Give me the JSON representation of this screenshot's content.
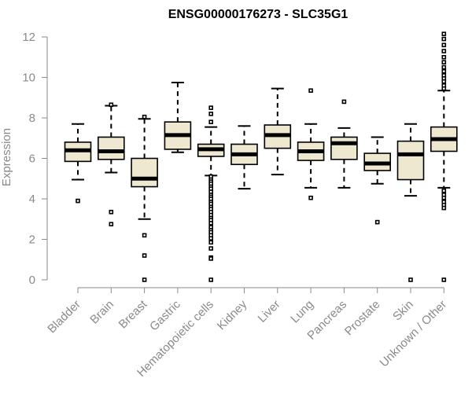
{
  "chart_data": {
    "type": "box",
    "title": "ENSG00000176273 - SLC35G1",
    "xlabel": "",
    "ylabel": "Expression",
    "ylim": [
      0,
      12
    ],
    "yticks": [
      "0",
      "2",
      "4",
      "6",
      "8",
      "10",
      "12"
    ],
    "colors": {
      "box_fill": "#efe8d0",
      "stroke": "#000000",
      "axis": "#8a8a8a"
    },
    "categories": [
      "Bladder",
      "Brain",
      "Breast",
      "Gastric",
      "Hematopoietic cells",
      "Kidney",
      "Liver",
      "Lung",
      "Pancreas",
      "Prostate",
      "Skin",
      "Unknown / Other"
    ],
    "boxes": [
      {
        "name": "Bladder",
        "low": 4.95,
        "q1": 5.85,
        "median": 6.4,
        "q3": 6.8,
        "high": 7.7,
        "outliers": [
          3.9
        ]
      },
      {
        "name": "Brain",
        "low": 5.3,
        "q1": 5.95,
        "median": 6.35,
        "q3": 7.05,
        "high": 8.6,
        "outliers": [
          8.65,
          3.35,
          2.75
        ]
      },
      {
        "name": "Breast",
        "low": 3.0,
        "q1": 4.6,
        "median": 5.0,
        "q3": 6.0,
        "high": 7.95,
        "outliers": [
          8.05,
          2.2,
          1.2,
          0.0
        ]
      },
      {
        "name": "Gastric",
        "low": 6.3,
        "q1": 6.45,
        "median": 7.15,
        "q3": 7.8,
        "high": 9.75,
        "outliers": []
      },
      {
        "name": "Hematopoietic cells",
        "low": 5.15,
        "q1": 6.1,
        "median": 6.45,
        "q3": 6.7,
        "high": 7.55,
        "outliers": [
          8.5,
          8.2,
          7.8,
          5.1,
          4.95,
          4.85,
          4.75,
          4.6,
          4.5,
          4.35,
          4.2,
          4.1,
          4.0,
          3.85,
          3.75,
          3.6,
          3.5,
          3.35,
          3.2,
          3.05,
          2.95,
          2.8,
          2.6,
          2.45,
          2.35,
          2.2,
          2.05,
          1.85,
          1.55,
          1.1,
          1.05,
          0.0
        ]
      },
      {
        "name": "Kidney",
        "low": 4.5,
        "q1": 5.7,
        "median": 6.2,
        "q3": 6.7,
        "high": 7.6,
        "outliers": []
      },
      {
        "name": "Liver",
        "low": 5.2,
        "q1": 6.5,
        "median": 7.15,
        "q3": 7.65,
        "high": 9.45,
        "outliers": []
      },
      {
        "name": "Lung",
        "low": 4.55,
        "q1": 5.9,
        "median": 6.35,
        "q3": 6.8,
        "high": 7.7,
        "outliers": [
          9.35,
          4.05
        ]
      },
      {
        "name": "Pancreas",
        "low": 4.55,
        "q1": 5.95,
        "median": 6.75,
        "q3": 7.05,
        "high": 7.5,
        "outliers": [
          8.8
        ]
      },
      {
        "name": "Prostate",
        "low": 4.75,
        "q1": 5.4,
        "median": 5.75,
        "q3": 6.25,
        "high": 7.05,
        "outliers": [
          2.85
        ]
      },
      {
        "name": "Skin",
        "low": 4.15,
        "q1": 4.95,
        "median": 6.2,
        "q3": 6.85,
        "high": 7.7,
        "outliers": [
          0.0
        ]
      },
      {
        "name": "Unknown / Other",
        "low": 4.55,
        "q1": 6.35,
        "median": 6.95,
        "q3": 7.55,
        "high": 9.35,
        "outliers": [
          12.15,
          11.9,
          11.6,
          11.3,
          11.0,
          10.75,
          10.5,
          10.3,
          10.1,
          9.95,
          9.8,
          9.6,
          9.45,
          4.4,
          4.2,
          4.05,
          3.85,
          3.7,
          3.55,
          0.0
        ]
      }
    ]
  }
}
